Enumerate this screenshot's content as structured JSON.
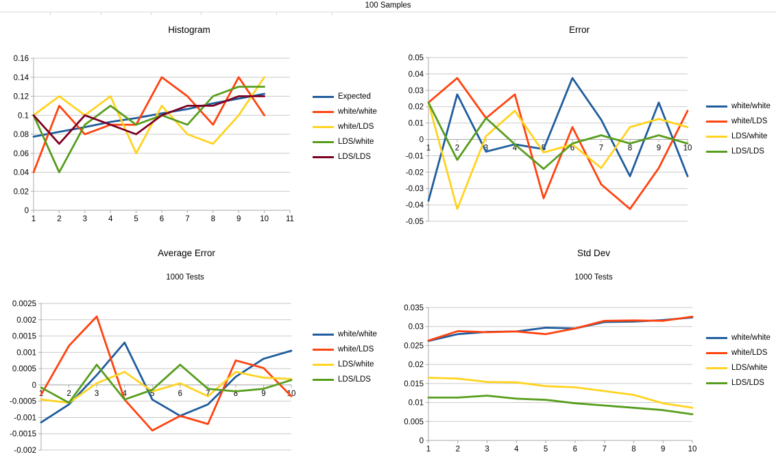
{
  "header": {
    "title": "100 Samples"
  },
  "colors": {
    "blue": "#1F5C9D",
    "red": "#FF420E",
    "yellow": "#FFD320",
    "green": "#579D1C",
    "dark_red": "#7E0021",
    "grid": "#c9c9c9",
    "axis": "#a8a8a8"
  },
  "chart_data": [
    {
      "type": "line",
      "title": "Histogram",
      "subtitle": null,
      "x": [
        1,
        2,
        3,
        4,
        5,
        6,
        7,
        8,
        9,
        10
      ],
      "xtick_labels": [
        "1",
        "2",
        "3",
        "4",
        "5",
        "6",
        "7",
        "8",
        "9",
        "10",
        "11"
      ],
      "ylim": [
        0,
        0.16
      ],
      "ytick_labels": [
        "0.16",
        "0.14",
        "0.12",
        "0.1",
        "0.08",
        "0.06",
        "0.04",
        "0.02",
        "0"
      ],
      "grid": "horizontal",
      "legend_position": "right",
      "series": [
        {
          "name": "Expected",
          "color": "#1F5C9D",
          "values": [
            0.0775,
            0.0825,
            0.0875,
            0.093,
            0.097,
            0.102,
            0.1065,
            0.1125,
            0.1175,
            0.1225
          ]
        },
        {
          "name": "white/white",
          "color": "#FF420E",
          "values": [
            0.04,
            0.11,
            0.08,
            0.09,
            0.09,
            0.14,
            0.12,
            0.09,
            0.14,
            0.1
          ]
        },
        {
          "name": "white/LDS",
          "color": "#FFD320",
          "values": [
            0.1,
            0.12,
            0.1,
            0.12,
            0.06,
            0.11,
            0.08,
            0.07,
            0.1,
            0.14
          ]
        },
        {
          "name": "LDS/white",
          "color": "#579D1C",
          "values": [
            0.1,
            0.04,
            0.09,
            0.11,
            0.09,
            0.1,
            0.09,
            0.12,
            0.13,
            0.13
          ]
        },
        {
          "name": "LDS/LDS",
          "color": "#7E0021",
          "values": [
            0.1,
            0.07,
            0.1,
            0.09,
            0.08,
            0.1,
            0.11,
            0.11,
            0.12,
            0.12
          ]
        }
      ]
    },
    {
      "type": "line",
      "title": "Error",
      "subtitle": null,
      "x": [
        1,
        2,
        3,
        4,
        5,
        6,
        7,
        8,
        9,
        10
      ],
      "xtick_labels": [
        "1",
        "2",
        "3",
        "4",
        "5",
        "6",
        "7",
        "8",
        "9",
        "10"
      ],
      "ylim": [
        -0.05,
        0.05
      ],
      "ytick_labels": [
        "0.05",
        "0.04",
        "0.03",
        "0.02",
        "0.01",
        "0",
        "-0.01",
        "-0.02",
        "-0.03",
        "-0.04",
        "-0.05"
      ],
      "grid": "horizontal",
      "legend_position": "right",
      "series": [
        {
          "name": "white/white",
          "color": "#1F5C9D",
          "values": [
            -0.0375,
            0.0275,
            -0.0075,
            -0.003,
            -0.006,
            0.0375,
            0.012,
            -0.0225,
            0.0225,
            -0.0225
          ]
        },
        {
          "name": "white/LDS",
          "color": "#FF420E",
          "values": [
            0.0225,
            0.0375,
            0.013,
            0.0275,
            -0.036,
            0.0075,
            -0.0275,
            -0.0425,
            -0.0175,
            0.0175
          ]
        },
        {
          "name": "LDS/white",
          "color": "#FFD320",
          "values": [
            0.0225,
            -0.0425,
            0.002,
            0.0175,
            -0.008,
            -0.003,
            -0.0175,
            0.0075,
            0.0125,
            0.0075
          ]
        },
        {
          "name": "LDS/LDS",
          "color": "#579D1C",
          "values": [
            0.0225,
            -0.0125,
            0.013,
            -0.003,
            -0.018,
            -0.0025,
            0.0025,
            -0.0025,
            0.0025,
            -0.0025
          ]
        }
      ]
    },
    {
      "type": "line",
      "title": "Average Error",
      "subtitle": "1000 Tests",
      "x": [
        1,
        2,
        3,
        4,
        5,
        6,
        7,
        8,
        9,
        10
      ],
      "xtick_labels": [
        "1",
        "2",
        "3",
        "4",
        "5",
        "6",
        "7",
        "8",
        "9",
        "10"
      ],
      "ylim": [
        -0.002,
        0.0025
      ],
      "ytick_labels": [
        "0.0025",
        "0.002",
        "0.0015",
        "0.001",
        "0.0005",
        "0",
        "-0.0005",
        "-0.001",
        "-0.0015",
        "-0.002"
      ],
      "grid": "horizontal",
      "legend_position": "right",
      "series": [
        {
          "name": "white/white",
          "color": "#1F5C9D",
          "values": [
            -0.00115,
            -0.0006,
            0.0003,
            0.0013,
            -0.00045,
            -0.00095,
            -0.0006,
            0.00025,
            0.0008,
            0.00105
          ]
        },
        {
          "name": "white/LDS",
          "color": "#FF420E",
          "values": [
            -0.0003,
            0.0012,
            0.0021,
            -0.00045,
            -0.0014,
            -0.00095,
            -0.0012,
            0.00075,
            0.00052,
            -0.00035
          ]
        },
        {
          "name": "LDS/white",
          "color": "#FFD320",
          "values": [
            -0.00045,
            -0.00055,
            5e-05,
            0.0004,
            -0.0002,
            5e-05,
            -0.00035,
            0.0004,
            0.00022,
            0.00018
          ]
        },
        {
          "name": "LDS/LDS",
          "color": "#579D1C",
          "values": [
            -8e-05,
            -0.00055,
            0.00062,
            -0.00045,
            -0.00015,
            0.00062,
            -0.00012,
            -0.0002,
            -0.00012,
            0.00015
          ]
        }
      ]
    },
    {
      "type": "line",
      "title": "Std Dev",
      "subtitle": "1000 Tests",
      "x": [
        1,
        2,
        3,
        4,
        5,
        6,
        7,
        8,
        9,
        10
      ],
      "xtick_labels": [
        "1",
        "2",
        "3",
        "4",
        "5",
        "6",
        "7",
        "8",
        "9",
        "10"
      ],
      "ylim": [
        0,
        0.035
      ],
      "ytick_labels": [
        "0.035",
        "0.03",
        "0.025",
        "0.02",
        "0.015",
        "0.01",
        "0.005",
        "0"
      ],
      "grid": "horizontal",
      "legend_position": "right",
      "series": [
        {
          "name": "white/white",
          "color": "#1F5C9D",
          "values": [
            0.0262,
            0.028,
            0.0286,
            0.0287,
            0.0297,
            0.0295,
            0.0312,
            0.0313,
            0.0317,
            0.0324
          ]
        },
        {
          "name": "white/LDS",
          "color": "#FF420E",
          "values": [
            0.0263,
            0.0288,
            0.0285,
            0.0287,
            0.028,
            0.0295,
            0.0315,
            0.0316,
            0.0315,
            0.0326
          ]
        },
        {
          "name": "LDS/white",
          "color": "#FFD320",
          "values": [
            0.0165,
            0.0163,
            0.0154,
            0.0153,
            0.0143,
            0.014,
            0.013,
            0.012,
            0.0098,
            0.0086
          ]
        },
        {
          "name": "LDS/LDS",
          "color": "#579D1C",
          "values": [
            0.0113,
            0.0113,
            0.0118,
            0.011,
            0.0107,
            0.0098,
            0.0092,
            0.0086,
            0.008,
            0.0069
          ]
        }
      ]
    }
  ]
}
